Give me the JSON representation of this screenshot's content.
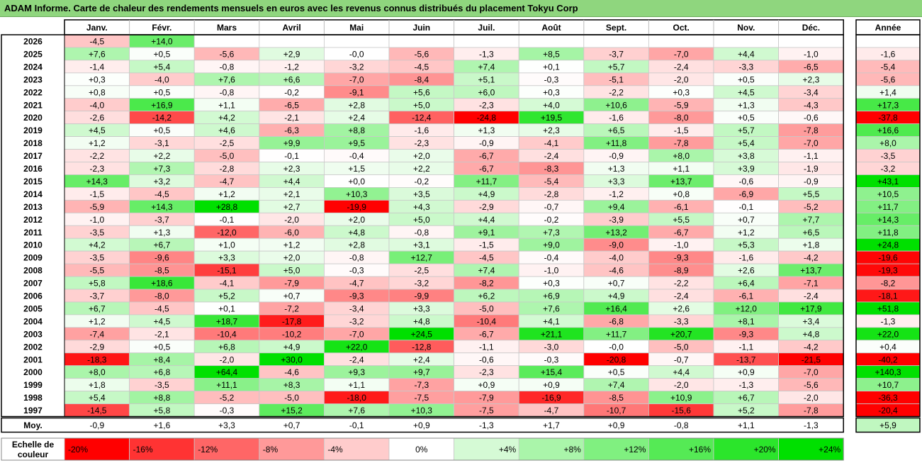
{
  "title": "ADAM Informe. Carte de chaleur des rendements mensuels en euros avec les revenus connus distribués du placement Tokyu Corp",
  "chart_data": {
    "type": "heatmap",
    "columns": [
      "Janv.",
      "Févr.",
      "Mars",
      "Avril",
      "Mai",
      "Juin",
      "Juil.",
      "Août",
      "Sept.",
      "Oct.",
      "Nov.",
      "Déc."
    ],
    "year_header": "Année",
    "rows": [
      {
        "year": "2026",
        "months": [
          "-4,5",
          "+14,0",
          "",
          "",
          "",
          "",
          "",
          "",
          "",
          "",
          "",
          ""
        ],
        "annual": ""
      },
      {
        "year": "2025",
        "months": [
          "+7,6",
          "+0,5",
          "-5,6",
          "+2,9",
          "-0,0",
          "-5,6",
          "-1,3",
          "+8,5",
          "-3,7",
          "-7,0",
          "+4,4",
          "-1,0"
        ],
        "annual": "-1,6"
      },
      {
        "year": "2024",
        "months": [
          "-1,4",
          "+5,4",
          "-0,8",
          "-1,2",
          "-3,2",
          "-4,5",
          "+7,4",
          "+0,1",
          "+5,7",
          "-2,4",
          "-3,3",
          "-6,5"
        ],
        "annual": "-5,4"
      },
      {
        "year": "2023",
        "months": [
          "+0,3",
          "-4,0",
          "+7,6",
          "+6,6",
          "-7,0",
          "-8,4",
          "+5,1",
          "-0,3",
          "-5,1",
          "-2,0",
          "+0,5",
          "+2,3"
        ],
        "annual": "-5,6"
      },
      {
        "year": "2022",
        "months": [
          "+0,8",
          "+0,5",
          "-0,8",
          "-0,2",
          "-9,1",
          "+5,6",
          "+6,0",
          "+0,3",
          "-2,2",
          "+0,3",
          "+4,5",
          "-3,4"
        ],
        "annual": "+1,4"
      },
      {
        "year": "2021",
        "months": [
          "-4,0",
          "+16,9",
          "+1,1",
          "-6,5",
          "+2,8",
          "+5,0",
          "-2,3",
          "+4,0",
          "+10,6",
          "-5,9",
          "+1,3",
          "-4,3"
        ],
        "annual": "+17,3"
      },
      {
        "year": "2020",
        "months": [
          "-2,6",
          "-14,2",
          "+4,2",
          "-2,1",
          "+2,4",
          "-12,4",
          "-24,8",
          "+19,5",
          "-1,6",
          "-8,0",
          "+0,5",
          "-0,6"
        ],
        "annual": "-37,8"
      },
      {
        "year": "2019",
        "months": [
          "+4,5",
          "+0,5",
          "+4,6",
          "-6,3",
          "+8,8",
          "-1,6",
          "+1,3",
          "+2,3",
          "+6,5",
          "-1,5",
          "+5,7",
          "-7,8"
        ],
        "annual": "+16,6"
      },
      {
        "year": "2018",
        "months": [
          "+1,2",
          "-3,1",
          "-2,5",
          "+9,9",
          "+9,5",
          "-2,3",
          "-0,9",
          "-4,1",
          "+11,8",
          "-7,8",
          "+5,4",
          "-7,0"
        ],
        "annual": "+8,0"
      },
      {
        "year": "2017",
        "months": [
          "-2,2",
          "+2,2",
          "-5,0",
          "-0,1",
          "-0,4",
          "+2,0",
          "-6,7",
          "-2,4",
          "-0,9",
          "+8,0",
          "+3,8",
          "-1,1"
        ],
        "annual": "-3,5"
      },
      {
        "year": "2016",
        "months": [
          "-2,3",
          "+7,3",
          "-2,8",
          "+2,3",
          "+1,5",
          "+2,2",
          "-6,7",
          "-8,3",
          "+1,3",
          "+1,1",
          "+3,9",
          "-1,9"
        ],
        "annual": "-3,2"
      },
      {
        "year": "2015",
        "months": [
          "+14,3",
          "+3,2",
          "-4,7",
          "+4,4",
          "+0,0",
          "-0,2",
          "+11,7",
          "-5,4",
          "+3,3",
          "+13,7",
          "-0,6",
          "-0,9"
        ],
        "annual": "+43,1"
      },
      {
        "year": "2014",
        "months": [
          "-1,5",
          "-4,5",
          "+1,2",
          "+2,1",
          "+10,3",
          "+3,5",
          "+4,9",
          "-2,8",
          "-1,2",
          "+0,8",
          "-6,9",
          "+5,5"
        ],
        "annual": "+10,5"
      },
      {
        "year": "2013",
        "months": [
          "-5,9",
          "+14,3",
          "+28,8",
          "+2,7",
          "-19,9",
          "+4,3",
          "-2,9",
          "-0,7",
          "+9,4",
          "-6,1",
          "-0,1",
          "-5,2"
        ],
        "annual": "+11,7"
      },
      {
        "year": "2012",
        "months": [
          "-1,0",
          "-3,7",
          "-0,1",
          "-2,0",
          "+2,0",
          "+5,0",
          "+4,4",
          "-0,2",
          "-3,9",
          "+5,5",
          "+0,7",
          "+7,7"
        ],
        "annual": "+14,3"
      },
      {
        "year": "2011",
        "months": [
          "-3,5",
          "+1,3",
          "-12,0",
          "-6,0",
          "+4,8",
          "-0,8",
          "+9,1",
          "+7,3",
          "+13,2",
          "-6,7",
          "+1,2",
          "+6,5"
        ],
        "annual": "+11,8"
      },
      {
        "year": "2010",
        "months": [
          "+4,2",
          "+6,7",
          "+1,0",
          "+1,2",
          "+2,8",
          "+3,1",
          "-1,5",
          "+9,0",
          "-9,0",
          "-1,0",
          "+5,3",
          "+1,8"
        ],
        "annual": "+24,8"
      },
      {
        "year": "2009",
        "months": [
          "-3,5",
          "-9,6",
          "+3,3",
          "+2,0",
          "-0,8",
          "+12,7",
          "-4,5",
          "-0,4",
          "-4,0",
          "-9,3",
          "-1,6",
          "-4,2"
        ],
        "annual": "-19,6"
      },
      {
        "year": "2008",
        "months": [
          "-5,5",
          "-8,5",
          "-15,1",
          "+5,0",
          "-0,3",
          "-2,5",
          "+7,4",
          "-1,0",
          "-4,6",
          "-8,9",
          "+2,6",
          "+13,7"
        ],
        "annual": "-19,3"
      },
      {
        "year": "2007",
        "months": [
          "+5,8",
          "+18,6",
          "-4,1",
          "-7,9",
          "-4,7",
          "-3,2",
          "-8,2",
          "+0,3",
          "+0,7",
          "-2,2",
          "+6,4",
          "-7,1"
        ],
        "annual": "-8,2"
      },
      {
        "year": "2006",
        "months": [
          "-3,7",
          "-8,0",
          "+5,2",
          "+0,7",
          "-9,3",
          "-9,9",
          "+6,2",
          "+6,9",
          "+4,9",
          "-2,4",
          "-6,1",
          "-2,4"
        ],
        "annual": "-18,1"
      },
      {
        "year": "2005",
        "months": [
          "+6,7",
          "-4,5",
          "+0,1",
          "-7,2",
          "-3,4",
          "+3,3",
          "-5,0",
          "+7,6",
          "+16,4",
          "+2,6",
          "+12,0",
          "+17,9"
        ],
        "annual": "+51,8"
      },
      {
        "year": "2004",
        "months": [
          "+1,2",
          "+4,5",
          "+18,7",
          "-17,8",
          "-3,2",
          "+4,8",
          "-10,4",
          "+4,1",
          "-6,8",
          "-3,3",
          "+8,1",
          "+3,4"
        ],
        "annual": "-1,3"
      },
      {
        "year": "2003",
        "months": [
          "-7,4",
          "-2,1",
          "-10,4",
          "-10,2",
          "-7,0",
          "+24,5",
          "-6,7",
          "+21,1",
          "+11,7",
          "+20,7",
          "-9,3",
          "+4,8"
        ],
        "annual": "+22,0"
      },
      {
        "year": "2002",
        "months": [
          "-2,9",
          "+0,5",
          "+6,8",
          "+4,9",
          "+22,0",
          "-12,8",
          "-1,1",
          "-3,0",
          "-0,0",
          "-5,0",
          "-1,1",
          "-4,2"
        ],
        "annual": "+0,4"
      },
      {
        "year": "2001",
        "months": [
          "-18,3",
          "+8,4",
          "-2,0",
          "+30,0",
          "-2,4",
          "+2,4",
          "-0,6",
          "-0,3",
          "-20,8",
          "-0,7",
          "-13,7",
          "-21,5"
        ],
        "annual": "-40,2"
      },
      {
        "year": "2000",
        "months": [
          "+8,0",
          "+6,8",
          "+64,4",
          "-4,6",
          "+9,3",
          "+9,7",
          "-2,3",
          "+15,4",
          "+0,5",
          "+4,4",
          "+0,9",
          "-7,0"
        ],
        "annual": "+140,3"
      },
      {
        "year": "1999",
        "months": [
          "+1,8",
          "-3,5",
          "+11,1",
          "+8,3",
          "+1,1",
          "-7,3",
          "+0,9",
          "+0,9",
          "+7,4",
          "-2,0",
          "-1,3",
          "-5,6"
        ],
        "annual": "+10,7"
      },
      {
        "year": "1998",
        "months": [
          "+5,4",
          "+8,8",
          "-5,2",
          "-5,0",
          "-18,0",
          "-7,5",
          "-7,9",
          "-16,9",
          "-8,5",
          "+10,9",
          "+6,7",
          "-2,0"
        ],
        "annual": "-36,3"
      },
      {
        "year": "1997",
        "months": [
          "-14,5",
          "+5,8",
          "-0,3",
          "+15,2",
          "+7,6",
          "+10,3",
          "-7,5",
          "-4,7",
          "-10,7",
          "-15,6",
          "+5,2",
          "-7,8"
        ],
        "annual": "-20,4"
      }
    ],
    "average": {
      "label": "Moy.",
      "months": [
        "-0,9",
        "+1,6",
        "+3,3",
        "+0,7",
        "-0,1",
        "+0,9",
        "-1,3",
        "+1,7",
        "+0,9",
        "-0,8",
        "+1,1",
        "-1,3"
      ],
      "annual": "+5,9"
    },
    "scale": {
      "label_line1": "Echelle de",
      "label_line2": "couleur",
      "items": [
        "-20%",
        "-16%",
        "-12%",
        "-8%",
        "-4%",
        "0%",
        "+4%",
        "+8%",
        "+12%",
        "+16%",
        "+20%",
        "+24%"
      ],
      "values": [
        -20,
        -16,
        -12,
        -8,
        -4,
        0,
        4,
        8,
        12,
        16,
        20,
        24
      ]
    },
    "colors": {
      "positive": "#00e000",
      "negative": "#ff0000",
      "neutral": "#ffffff",
      "title_bg": "#8fd67e"
    }
  }
}
